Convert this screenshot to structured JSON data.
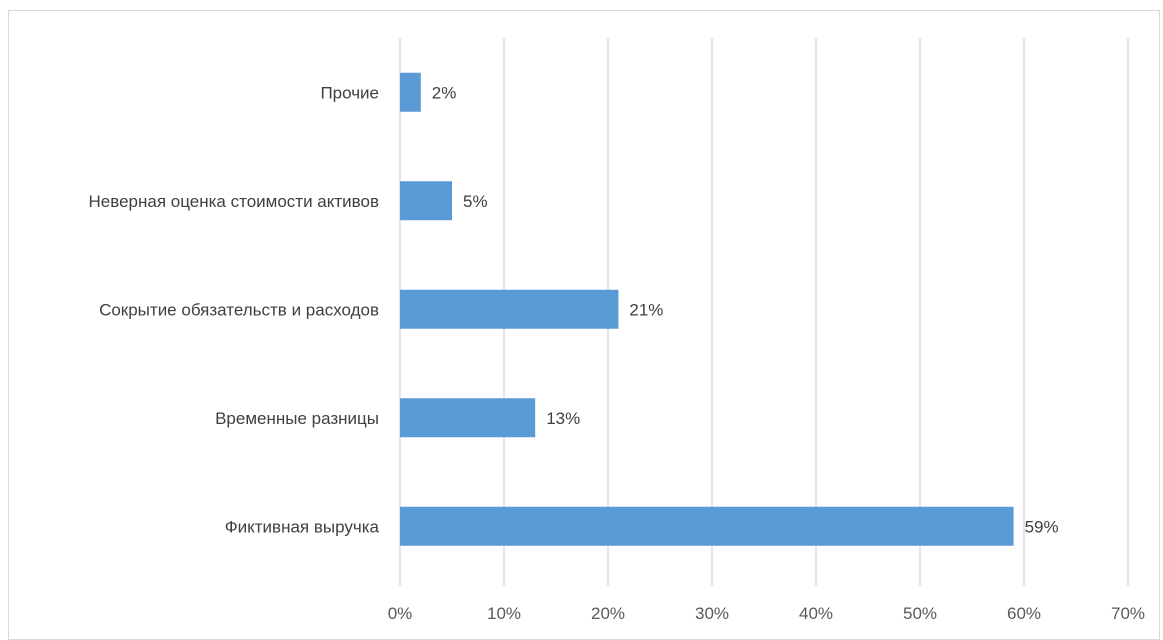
{
  "chart_data": {
    "type": "bar",
    "orientation": "horizontal",
    "categories": [
      "Прочие",
      "Неверная оценка стоимости активов",
      "Сокрытие обязательств и расходов",
      "Временные разницы",
      "Фиктивная выручка"
    ],
    "values": [
      2,
      5,
      21,
      13,
      59
    ],
    "value_labels": [
      "2%",
      "5%",
      "21%",
      "13%",
      "59%"
    ],
    "xlim": [
      0,
      70
    ],
    "x_ticks": [
      0,
      10,
      20,
      30,
      40,
      50,
      60,
      70
    ],
    "x_tick_labels": [
      "0%",
      "10%",
      "20%",
      "30%",
      "40%",
      "50%",
      "60%",
      "70%"
    ],
    "grid": "vertical",
    "legend": "none",
    "title": "",
    "xlabel": "",
    "ylabel": "",
    "colors": {
      "bar": "#5b9bd5",
      "grid": "#d9d9d9",
      "text": "#404040",
      "tick_text": "#595959"
    }
  }
}
